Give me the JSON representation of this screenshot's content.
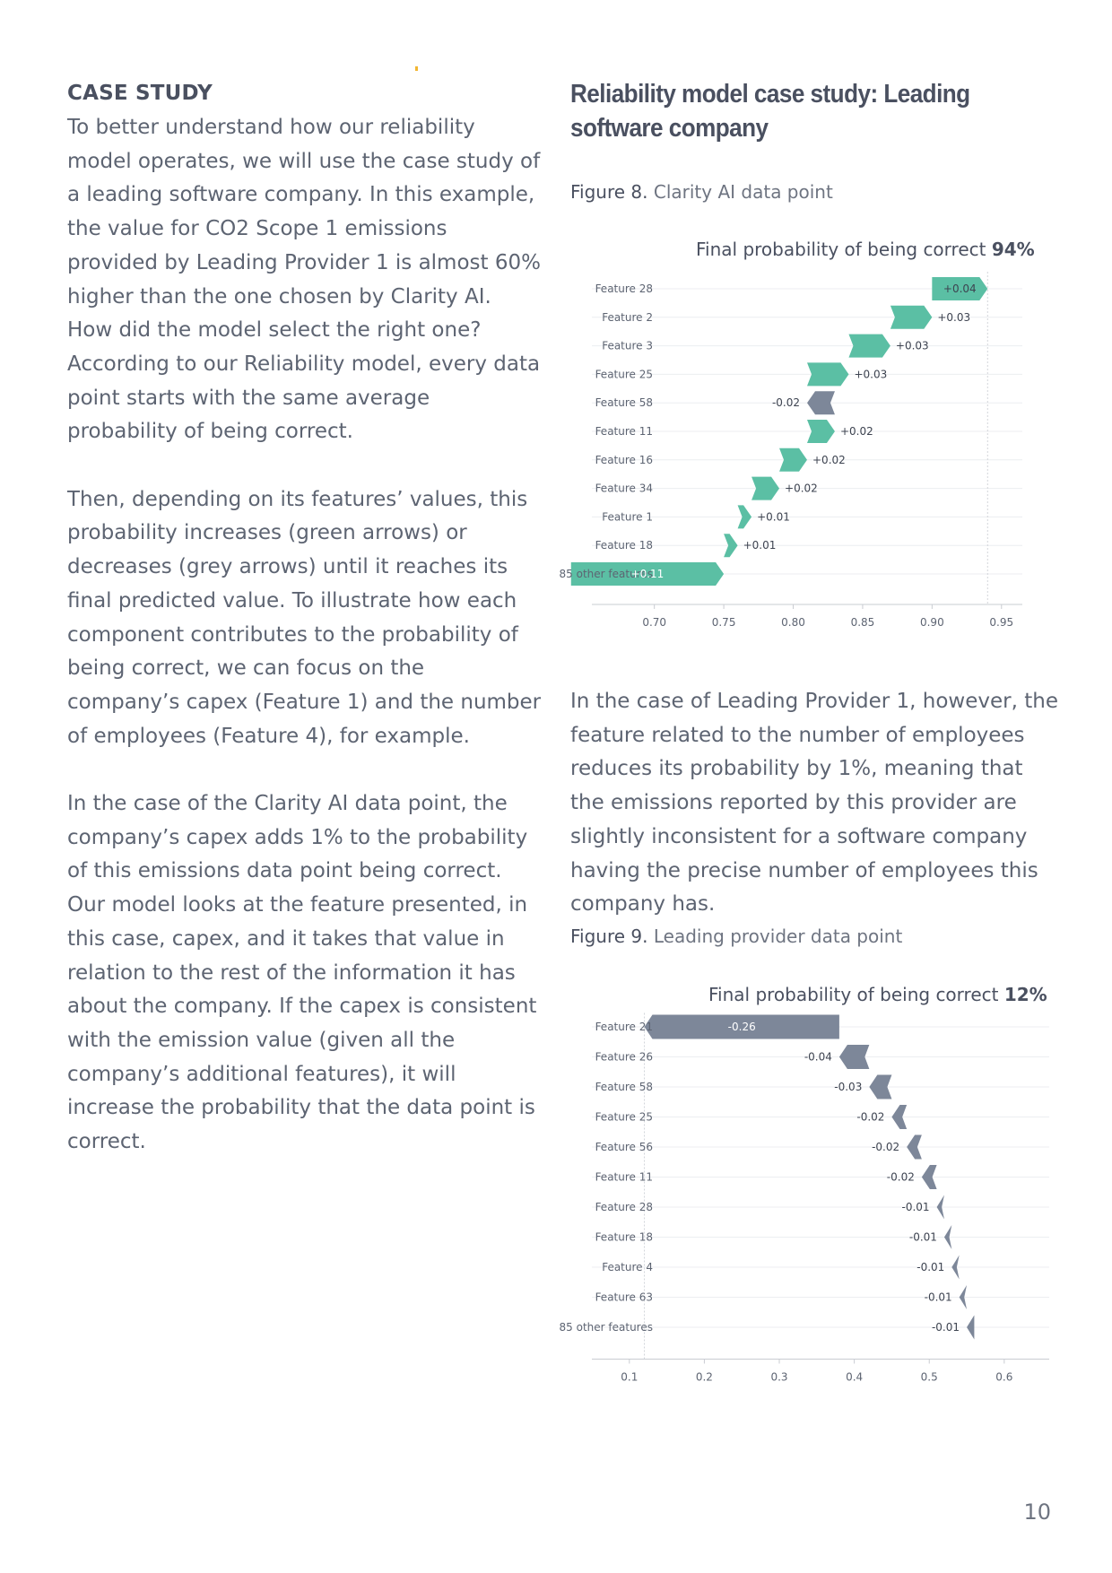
{
  "left": {
    "heading": "CASE STUDY",
    "paragraphs": [
      "To better understand how our reliability model operates, we will use the case study of a leading software company. In this example, the value for CO2 Scope 1 emissions provided by Leading Provider 1 is almost 60% higher than the one chosen by Clarity AI. How did the model select the right one? According to our Reliability model, every data point starts with the same average probability of being correct.",
      "Then, depending on its features’ values, this probability increases (green arrows) or decreases (grey arrows) until it reaches its final predicted value. To illustrate how each component contributes to the probability of being correct, we can focus on the company’s capex (Feature 1) and the number of employees (Feature 4), for example.",
      "In the case of the Clarity AI data point, the company’s capex adds 1% to the probability of this emissions data point being correct. Our model looks at the feature presented, in this case, capex, and it takes that value in relation to the rest of the information it has about the company. If the capex is consistent with the emission value (given all the company’s additional features), it will increase the probability that the data point is correct."
    ]
  },
  "right": {
    "title": "Reliability model case study: Leading software company",
    "fig8_num": "Figure 8.",
    "fig8_caption": "Clarity AI data point",
    "paragraph": "In the case of Leading Provider 1, however, the feature related to the number of employees reduces its probability by 1%, meaning that the emissions reported by this provider are slightly inconsistent for a software company having the precise number of employees this company has.",
    "fig9_num": "Figure 9.",
    "fig9_caption": "Leading provider data point"
  },
  "page_number": "10",
  "colors": {
    "positive": "#5bbfa4",
    "negative": "#7d8799",
    "text": "#5d6472",
    "accent_dot": "#f2b632"
  },
  "chart_data": [
    {
      "type": "bar",
      "subtype": "waterfall",
      "title_prefix": "Final probability of being correct ",
      "title_value": "94%",
      "final": 0.94,
      "xlim": [
        0.655,
        0.965
      ],
      "xticks": [
        "0.70",
        "0.75",
        "0.80",
        "0.85",
        "0.90",
        "0.95"
      ],
      "tick_values": [
        0.7,
        0.75,
        0.8,
        0.85,
        0.9,
        0.95
      ],
      "bars": [
        {
          "label": "Feature 28",
          "value": 0.04,
          "text": "+0.04"
        },
        {
          "label": "Feature 2",
          "value": 0.03,
          "text": "+0.03"
        },
        {
          "label": "Feature 3",
          "value": 0.03,
          "text": "+0.03"
        },
        {
          "label": "Feature 25",
          "value": 0.03,
          "text": "+0.03"
        },
        {
          "label": "Feature 58",
          "value": -0.02,
          "text": "-0.02"
        },
        {
          "label": "Feature 11",
          "value": 0.02,
          "text": "+0.02"
        },
        {
          "label": "Feature 16",
          "value": 0.02,
          "text": "+0.02"
        },
        {
          "label": "Feature 34",
          "value": 0.02,
          "text": "+0.02"
        },
        {
          "label": "Feature 1",
          "value": 0.01,
          "text": "+0.01"
        },
        {
          "label": "Feature 18",
          "value": 0.01,
          "text": "+0.01"
        },
        {
          "label": "85 other features",
          "value": 0.11,
          "text": "+0.11"
        }
      ]
    },
    {
      "type": "bar",
      "subtype": "waterfall",
      "title_prefix": "Final probability of being correct ",
      "title_value": "12%",
      "final": 0.12,
      "xlim": [
        0.05,
        0.66
      ],
      "xticks": [
        "0.1",
        "0.2",
        "0.3",
        "0.4",
        "0.5",
        "0.6"
      ],
      "tick_values": [
        0.1,
        0.2,
        0.3,
        0.4,
        0.5,
        0.6
      ],
      "bars": [
        {
          "label": "Feature 21",
          "value": -0.26,
          "text": "-0.26"
        },
        {
          "label": "Feature 26",
          "value": -0.04,
          "text": "-0.04"
        },
        {
          "label": "Feature 58",
          "value": -0.03,
          "text": "-0.03"
        },
        {
          "label": "Feature 25",
          "value": -0.02,
          "text": "-0.02"
        },
        {
          "label": "Feature 56",
          "value": -0.02,
          "text": "-0.02"
        },
        {
          "label": "Feature 11",
          "value": -0.02,
          "text": "-0.02"
        },
        {
          "label": "Feature 28",
          "value": -0.01,
          "text": "-0.01"
        },
        {
          "label": "Feature 18",
          "value": -0.01,
          "text": "-0.01"
        },
        {
          "label": "Feature 4",
          "value": -0.01,
          "text": "-0.01"
        },
        {
          "label": "Feature 63",
          "value": -0.01,
          "text": "-0.01"
        },
        {
          "label": "85 other features",
          "value": -0.01,
          "text": "-0.01"
        }
      ]
    }
  ]
}
